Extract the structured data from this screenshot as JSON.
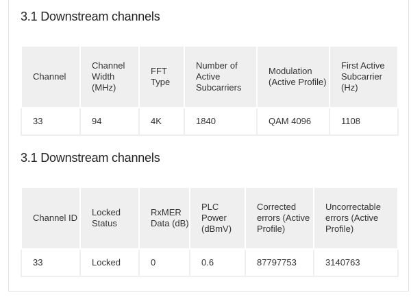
{
  "tables": [
    {
      "title": "3.1 Downstream channels",
      "headers": [
        "Channel",
        "Channel Width (MHz)",
        "FFT Type",
        "Number of Active Subcarriers",
        "Modulation (Active Profile)",
        "First Active Subcarrier (Hz)"
      ],
      "rows": [
        [
          "33",
          "94",
          "4K",
          "1840",
          "QAM 4096",
          "1108"
        ]
      ]
    },
    {
      "title": "3.1 Downstream channels",
      "headers": [
        "Channel ID",
        "Locked Status",
        "RxMER Data (dB)",
        "PLC Power (dBmV)",
        "Corrected errors (Active Profile)",
        "Uncorrectable errors (Active Profile)"
      ],
      "rows": [
        [
          "33",
          "Locked",
          "0",
          "0.6",
          "87797753",
          "3140763"
        ]
      ]
    }
  ]
}
